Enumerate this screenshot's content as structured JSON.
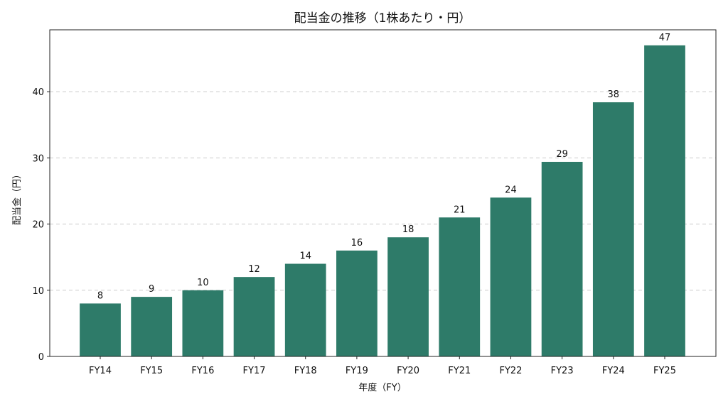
{
  "chart_data": {
    "type": "bar",
    "title": "配当金の推移（1株あたり・円）",
    "xlabel": "年度（FY）",
    "ylabel": "配当金（円）",
    "categories": [
      "FY14",
      "FY15",
      "FY16",
      "FY17",
      "FY18",
      "FY19",
      "FY20",
      "FY21",
      "FY22",
      "FY23",
      "FY24",
      "FY25"
    ],
    "values": [
      8,
      9,
      10,
      12,
      14,
      16,
      18,
      21,
      24,
      29.4,
      38.4,
      47
    ],
    "value_labels": [
      "8",
      "9",
      "10",
      "12",
      "14",
      "16",
      "18",
      "21",
      "24",
      "29",
      "38",
      "47"
    ],
    "yticks": [
      0,
      10,
      20,
      30,
      40
    ],
    "ylim": [
      0,
      49.35
    ],
    "grid": "y-dashed",
    "bar_color": "#2e7b69"
  }
}
